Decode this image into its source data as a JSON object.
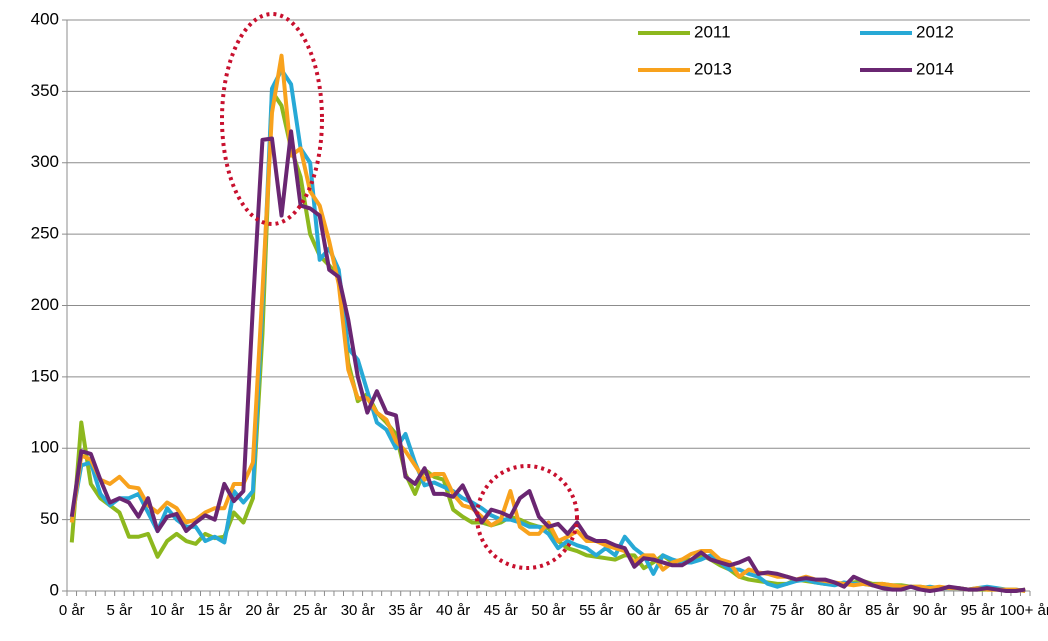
{
  "chart_data": {
    "type": "line",
    "categories": [
      "0 år",
      null,
      null,
      null,
      null,
      "5 år",
      null,
      null,
      null,
      null,
      "10 år",
      null,
      null,
      null,
      null,
      "15 år",
      null,
      null,
      null,
      null,
      "20 år",
      null,
      null,
      null,
      null,
      "25 år",
      null,
      null,
      null,
      null,
      "30 år",
      null,
      null,
      null,
      null,
      "35 år",
      null,
      null,
      null,
      null,
      "40 år",
      null,
      null,
      null,
      null,
      "45 år",
      null,
      null,
      null,
      null,
      "50 år",
      null,
      null,
      null,
      null,
      "55 år",
      null,
      null,
      null,
      null,
      "60 år",
      null,
      null,
      null,
      null,
      "65 år",
      null,
      null,
      null,
      null,
      "70 år",
      null,
      null,
      null,
      null,
      "75 år",
      null,
      null,
      null,
      null,
      "80 år",
      null,
      null,
      null,
      null,
      "85 år",
      null,
      null,
      null,
      null,
      "90 år",
      null,
      null,
      null,
      null,
      "95 år",
      null,
      null,
      null,
      null,
      "100+ år"
    ],
    "series": [
      {
        "name": "2011",
        "color": "#8db81e",
        "values": [
          34,
          118,
          75,
          65,
          60,
          55,
          38,
          38,
          40,
          24,
          35,
          40,
          35,
          33,
          40,
          37,
          38,
          55,
          48,
          65,
          180,
          350,
          340,
          310,
          290,
          250,
          235,
          228,
          220,
          160,
          133,
          138,
          125,
          118,
          110,
          82,
          68,
          85,
          80,
          78,
          57,
          52,
          48,
          48,
          46,
          48,
          52,
          50,
          47,
          45,
          44,
          35,
          30,
          28,
          25,
          24,
          23,
          22,
          25,
          25,
          16,
          20,
          25,
          20,
          22,
          22,
          25,
          22,
          18,
          15,
          10,
          8,
          7,
          6,
          5,
          5,
          8,
          7,
          6,
          5,
          6,
          4,
          6,
          7,
          5,
          5,
          4,
          4,
          3,
          3,
          2,
          2,
          2,
          2,
          1,
          1,
          1,
          1,
          1,
          0,
          1
        ]
      },
      {
        "name": "2012",
        "color": "#27a9d6",
        "values": [
          50,
          88,
          90,
          68,
          60,
          65,
          65,
          68,
          55,
          42,
          58,
          50,
          45,
          45,
          35,
          38,
          34,
          70,
          62,
          70,
          200,
          352,
          365,
          355,
          310,
          300,
          232,
          240,
          225,
          170,
          162,
          140,
          118,
          113,
          100,
          110,
          90,
          74,
          76,
          73,
          70,
          65,
          62,
          58,
          53,
          50,
          50,
          48,
          45,
          45,
          40,
          30,
          35,
          32,
          30,
          25,
          30,
          25,
          38,
          30,
          25,
          12,
          25,
          22,
          20,
          20,
          22,
          25,
          20,
          15,
          15,
          12,
          10,
          5,
          3,
          5,
          7,
          8,
          6,
          5,
          4,
          6,
          5,
          5,
          4,
          4,
          3,
          3,
          3,
          2,
          3,
          2,
          2,
          2,
          1,
          2,
          3,
          2,
          1,
          1,
          0
        ]
      },
      {
        "name": "2013",
        "color": "#f8a21d",
        "values": [
          48,
          95,
          92,
          78,
          75,
          80,
          73,
          72,
          60,
          55,
          62,
          58,
          48,
          50,
          55,
          58,
          58,
          75,
          75,
          90,
          210,
          335,
          375,
          305,
          310,
          280,
          270,
          245,
          215,
          155,
          135,
          135,
          125,
          120,
          105,
          98,
          88,
          78,
          82,
          82,
          68,
          60,
          58,
          52,
          46,
          50,
          70,
          45,
          40,
          40,
          48,
          35,
          38,
          42,
          35,
          35,
          32,
          30,
          28,
          20,
          25,
          25,
          15,
          20,
          22,
          26,
          28,
          28,
          22,
          20,
          10,
          15,
          13,
          12,
          10,
          10,
          8,
          10,
          8,
          7,
          6,
          5,
          4,
          5,
          4,
          5,
          4,
          3,
          3,
          3,
          2,
          3,
          2,
          2,
          1,
          2,
          1,
          1,
          1,
          1,
          0
        ]
      },
      {
        "name": "2014",
        "color": "#6a2672",
        "values": [
          52,
          98,
          96,
          78,
          62,
          65,
          62,
          52,
          65,
          42,
          52,
          54,
          42,
          48,
          53,
          50,
          75,
          63,
          70,
          200,
          316,
          317,
          263,
          322,
          270,
          268,
          263,
          225,
          220,
          190,
          150,
          125,
          140,
          125,
          123,
          80,
          75,
          86,
          68,
          68,
          66,
          74,
          60,
          48,
          57,
          55,
          52,
          65,
          70,
          52,
          45,
          47,
          40,
          48,
          38,
          35,
          35,
          32,
          30,
          17,
          23,
          22,
          20,
          18,
          18,
          22,
          27,
          22,
          20,
          18,
          20,
          23,
          12,
          13,
          12,
          10,
          8,
          9,
          8,
          8,
          6,
          3,
          10,
          7,
          4,
          2,
          1,
          1,
          3,
          1,
          0,
          1,
          3,
          2,
          1,
          1,
          2,
          1,
          0,
          0,
          1
        ]
      }
    ],
    "ylim": [
      0,
      400
    ],
    "yticks": [
      0,
      50,
      100,
      150,
      200,
      250,
      300,
      350,
      400
    ],
    "grid": true,
    "legend": "upper right"
  }
}
